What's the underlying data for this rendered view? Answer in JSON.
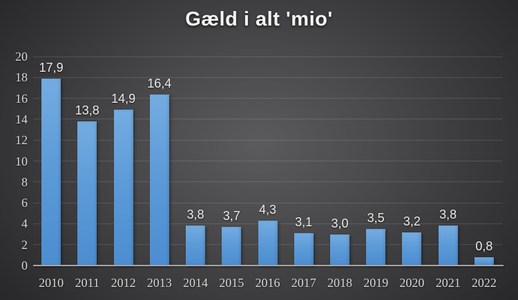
{
  "chart_data": {
    "type": "bar",
    "title": "Gæld i alt 'mio'",
    "categories": [
      "2010",
      "2011",
      "2012",
      "2013",
      "2014",
      "2015",
      "2016",
      "2017",
      "2018",
      "2019",
      "2020",
      "2021",
      "2022"
    ],
    "values": [
      17.9,
      13.8,
      14.9,
      16.4,
      3.8,
      3.7,
      4.3,
      3.1,
      3.0,
      3.5,
      3.2,
      3.8,
      0.8
    ],
    "value_labels": [
      "17,9",
      "13,8",
      "14,9",
      "16,4",
      "3,8",
      "3,7",
      "4,3",
      "3,1",
      "3,0",
      "3,5",
      "3,2",
      "3,8",
      "0,8"
    ],
    "xlabel": "",
    "ylabel": "",
    "ylim": [
      0,
      20
    ],
    "ytick_step": 2,
    "ytick_labels": [
      "0",
      "2",
      "4",
      "6",
      "8",
      "10",
      "12",
      "14",
      "16",
      "18",
      "20"
    ],
    "grid": true,
    "legend": false,
    "colors": {
      "bar_top": "#74ace1",
      "bar_bottom": "#4c8dd0",
      "background_center": "#5a5a5c",
      "background_edge": "#242426",
      "gridline": "rgba(255,255,255,0.13)",
      "axis_line": "#a6a6a6",
      "tick_label": "#d6d6d6",
      "value_label": "#e9e9e9",
      "title": "#f5f5f5"
    }
  }
}
